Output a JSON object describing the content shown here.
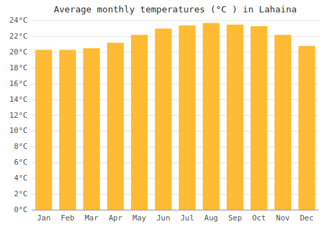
{
  "chart_data": {
    "type": "bar",
    "title": "Average monthly temperatures (°C ) in Lahaina",
    "categories": [
      "Jan",
      "Feb",
      "Mar",
      "Apr",
      "May",
      "Jun",
      "Jul",
      "Aug",
      "Sep",
      "Oct",
      "Nov",
      "Dec"
    ],
    "values": [
      20.3,
      20.3,
      20.5,
      21.2,
      22.2,
      23.0,
      23.4,
      23.7,
      23.5,
      23.3,
      22.2,
      20.8
    ],
    "color": "#FFBB33",
    "ylim": [
      0,
      24
    ],
    "yticks": [
      {
        "value": 0,
        "label": "0°C"
      },
      {
        "value": 2,
        "label": "2°C"
      },
      {
        "value": 4,
        "label": "4°C"
      },
      {
        "value": 6,
        "label": "6°C"
      },
      {
        "value": 8,
        "label": "8°C"
      },
      {
        "value": 10,
        "label": "10°C"
      },
      {
        "value": 12,
        "label": "12°C"
      },
      {
        "value": 14,
        "label": "14°C"
      },
      {
        "value": 16,
        "label": "16°C"
      },
      {
        "value": 18,
        "label": "18°C"
      },
      {
        "value": 20,
        "label": "20°C"
      },
      {
        "value": 22,
        "label": "22°C"
      },
      {
        "value": 24,
        "label": "24°C"
      }
    ],
    "grid": true
  }
}
